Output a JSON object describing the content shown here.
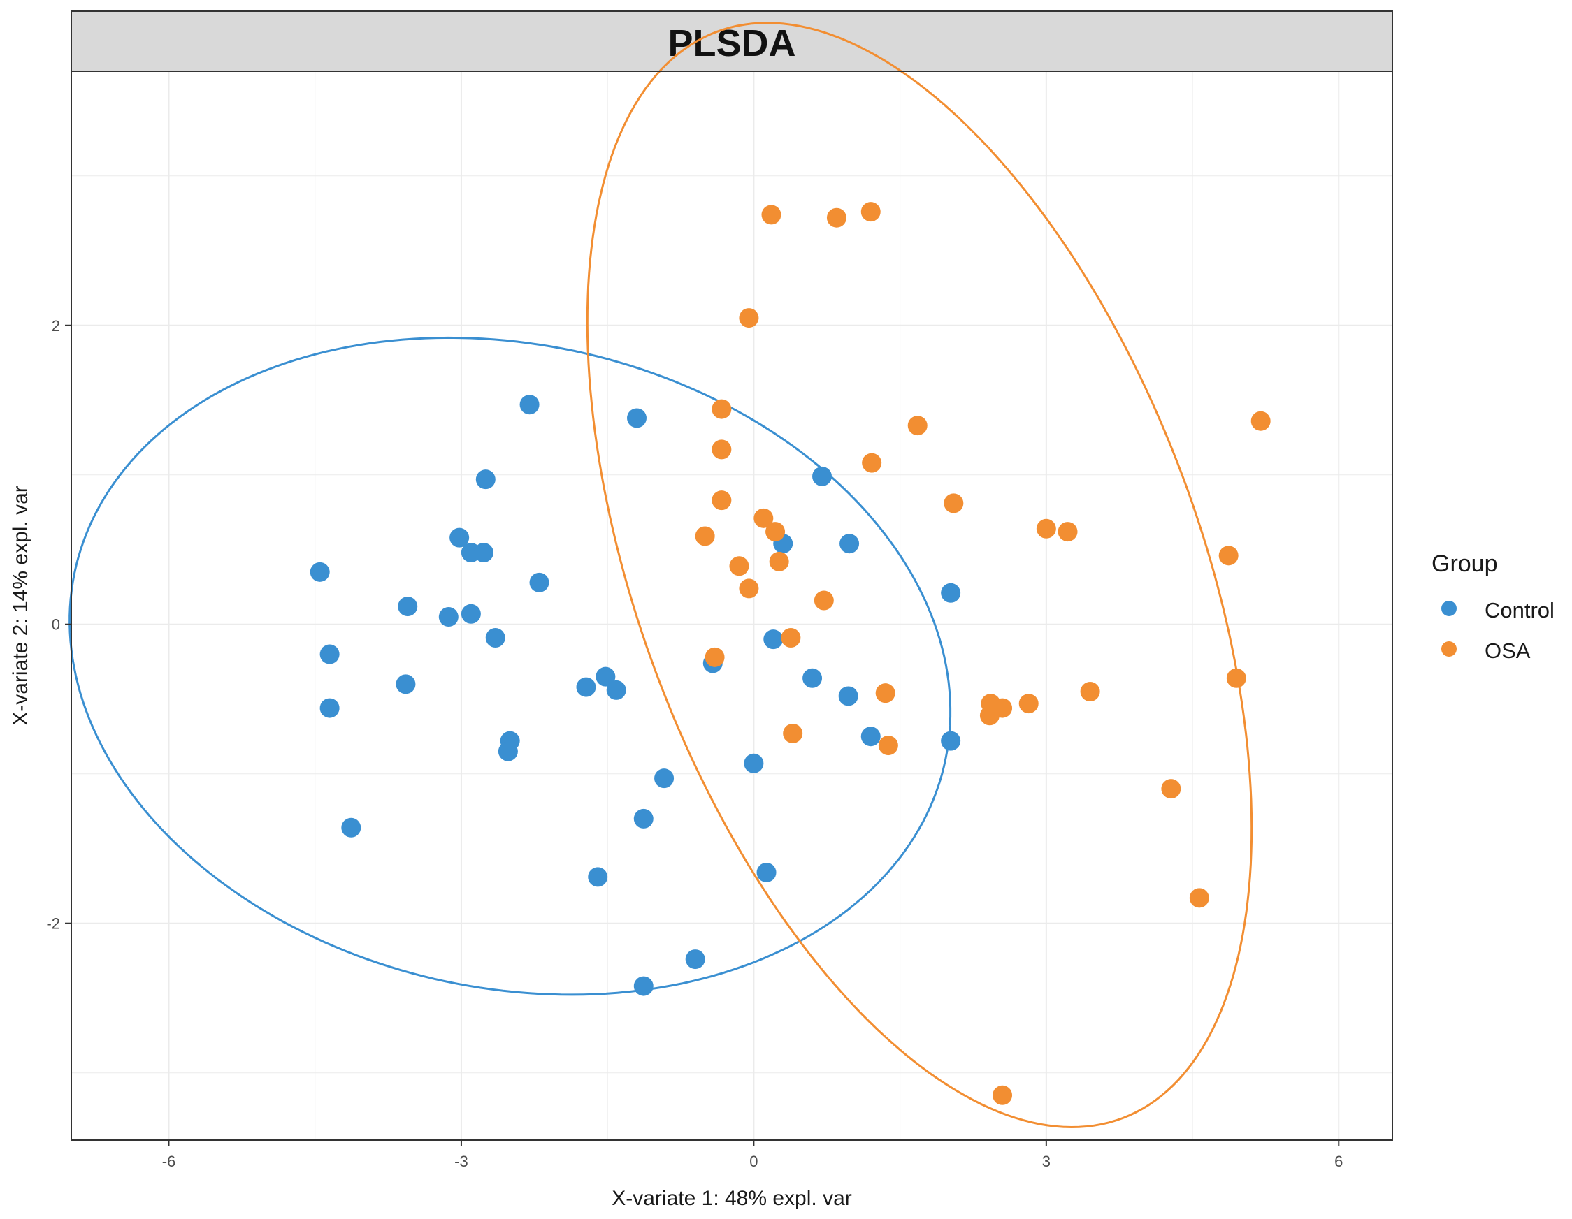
{
  "chart_data": {
    "type": "scatter",
    "title": "PLSDA",
    "xlabel": "X-variate 1: 48% expl. var",
    "ylabel": "X-variate 2: 14% expl. var",
    "xlim": [
      -7.0,
      6.55
    ],
    "ylim": [
      -3.45,
      3.7
    ],
    "x_ticks": [
      -6,
      -3,
      0,
      3,
      6
    ],
    "x_tick_labels": [
      "-6",
      "-3",
      "0",
      "3",
      "6"
    ],
    "y_ticks": [
      -2,
      0,
      2
    ],
    "y_tick_labels": [
      "-2",
      "0",
      "2"
    ],
    "grid": true,
    "legend": {
      "title": "Group",
      "position": "right"
    },
    "series": [
      {
        "name": "Control",
        "color": "#3a8fd1",
        "points": [
          [
            -4.45,
            0.35
          ],
          [
            -4.35,
            -0.2
          ],
          [
            -4.35,
            -0.56
          ],
          [
            -4.13,
            -1.36
          ],
          [
            -3.55,
            0.12
          ],
          [
            -3.57,
            -0.4
          ],
          [
            -3.13,
            0.05
          ],
          [
            -3.02,
            0.58
          ],
          [
            -2.9,
            0.48
          ],
          [
            -2.9,
            0.07
          ],
          [
            -2.77,
            0.48
          ],
          [
            -2.75,
            0.97
          ],
          [
            -2.65,
            -0.09
          ],
          [
            -2.5,
            -0.78
          ],
          [
            -2.52,
            -0.85
          ],
          [
            -2.3,
            1.47
          ],
          [
            -2.2,
            0.28
          ],
          [
            -1.72,
            -0.42
          ],
          [
            -1.52,
            -0.35
          ],
          [
            -1.41,
            -0.44
          ],
          [
            -1.6,
            -1.69
          ],
          [
            -1.2,
            1.38
          ],
          [
            -1.13,
            -1.3
          ],
          [
            -0.92,
            -1.03
          ],
          [
            -1.13,
            -2.42
          ],
          [
            -0.6,
            -2.24
          ],
          [
            -0.42,
            -0.26
          ],
          [
            0.0,
            -0.93
          ],
          [
            0.13,
            -1.66
          ],
          [
            0.2,
            -0.1
          ],
          [
            0.3,
            0.54
          ],
          [
            0.6,
            -0.36
          ],
          [
            0.7,
            0.99
          ],
          [
            0.97,
            -0.48
          ],
          [
            0.98,
            0.54
          ],
          [
            1.2,
            -0.75
          ],
          [
            2.02,
            0.21
          ],
          [
            2.02,
            -0.78
          ]
        ],
        "ellipse": {
          "center": [
            -2.5,
            -0.28
          ],
          "rx": 4.53,
          "ry": 2.17,
          "angle_deg": -5
        }
      },
      {
        "name": "OSA",
        "color": "#f28e32",
        "points": [
          [
            0.18,
            2.74
          ],
          [
            0.85,
            2.72
          ],
          [
            1.2,
            2.76
          ],
          [
            -0.05,
            2.05
          ],
          [
            -0.33,
            1.44
          ],
          [
            -0.33,
            1.17
          ],
          [
            -0.33,
            0.83
          ],
          [
            -0.5,
            0.59
          ],
          [
            0.1,
            0.71
          ],
          [
            0.22,
            0.62
          ],
          [
            -0.15,
            0.39
          ],
          [
            0.26,
            0.42
          ],
          [
            -0.05,
            0.24
          ],
          [
            0.72,
            0.16
          ],
          [
            0.38,
            -0.09
          ],
          [
            -0.4,
            -0.22
          ],
          [
            1.21,
            1.08
          ],
          [
            1.68,
            1.33
          ],
          [
            2.05,
            0.81
          ],
          [
            3.0,
            0.64
          ],
          [
            3.22,
            0.62
          ],
          [
            1.35,
            -0.46
          ],
          [
            2.43,
            -0.53
          ],
          [
            2.55,
            -0.56
          ],
          [
            2.82,
            -0.53
          ],
          [
            2.42,
            -0.61
          ],
          [
            3.45,
            -0.45
          ],
          [
            0.4,
            -0.73
          ],
          [
            1.38,
            -0.81
          ],
          [
            4.87,
            0.46
          ],
          [
            4.95,
            -0.36
          ],
          [
            5.2,
            1.36
          ],
          [
            4.28,
            -1.1
          ],
          [
            4.57,
            -1.83
          ],
          [
            2.55,
            -3.15
          ]
        ],
        "ellipse": {
          "center": [
            1.7,
            0.33
          ],
          "rx": 4.3,
          "ry": 2.6,
          "angle_deg": -50
        }
      }
    ]
  }
}
